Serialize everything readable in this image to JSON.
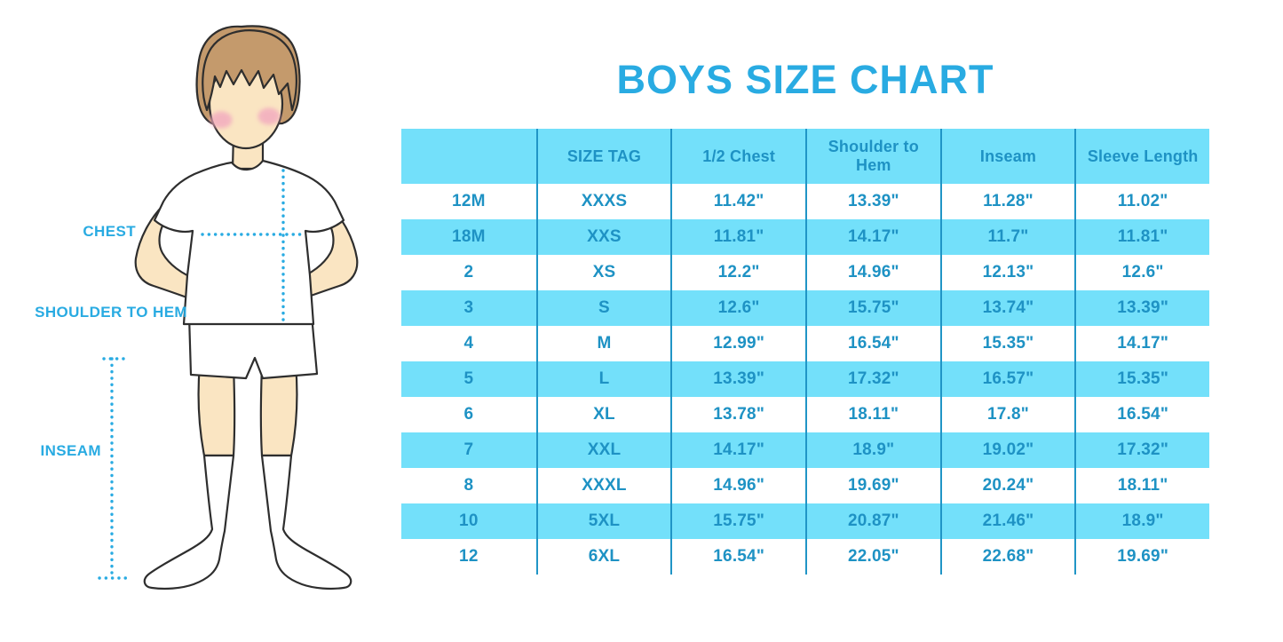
{
  "title": "BOYS SIZE CHART",
  "figure": {
    "chest_label": "CHEST",
    "shoulder_to_hem_label": "SHOULDER TO HEM",
    "inseam_label": "INSEAM"
  },
  "chart_data": {
    "type": "table",
    "title": "BOYS SIZE CHART",
    "columns": [
      "",
      "SIZE TAG",
      "1/2 Chest",
      "Shoulder to Hem",
      "Inseam",
      "Sleeve Length"
    ],
    "rows": [
      [
        "12M",
        "XXXS",
        "11.42\"",
        "13.39\"",
        "11.28\"",
        "11.02\""
      ],
      [
        "18M",
        "XXS",
        "11.81\"",
        "14.17\"",
        "11.7\"",
        "11.81\""
      ],
      [
        "2",
        "XS",
        "12.2\"",
        "14.96\"",
        "12.13\"",
        "12.6\""
      ],
      [
        "3",
        "S",
        "12.6\"",
        "15.75\"",
        "13.74\"",
        "13.39\""
      ],
      [
        "4",
        "M",
        "12.99\"",
        "16.54\"",
        "15.35\"",
        "14.17\""
      ],
      [
        "5",
        "L",
        "13.39\"",
        "17.32\"",
        "16.57\"",
        "15.35\""
      ],
      [
        "6",
        "XL",
        "13.78\"",
        "18.11\"",
        "17.8\"",
        "16.54\""
      ],
      [
        "7",
        "XXL",
        "14.17\"",
        "18.9\"",
        "19.02\"",
        "17.32\""
      ],
      [
        "8",
        "XXXL",
        "14.96\"",
        "19.69\"",
        "20.24\"",
        "18.11\""
      ],
      [
        "10",
        "5XL",
        "15.75\"",
        "20.87\"",
        "21.46\"",
        "18.9\""
      ],
      [
        "12",
        "6XL",
        "16.54\"",
        "22.05\"",
        "22.68\"",
        "19.69\""
      ]
    ],
    "units": "inches",
    "layout": {
      "striping": "alternate rows cyan starting with header",
      "grid": "vertical column rules only",
      "legend": "none"
    }
  },
  "colors": {
    "accent_blue": "#29ABE2",
    "table_text_blue": "#1E92C4",
    "stripe_cyan": "#73E0FA",
    "column_line_blue": "#2095C6",
    "skin": "#FAE5C2",
    "hair": "#C49A6C",
    "blush": "#F2A9BF",
    "outline": "#2E2E2E"
  }
}
